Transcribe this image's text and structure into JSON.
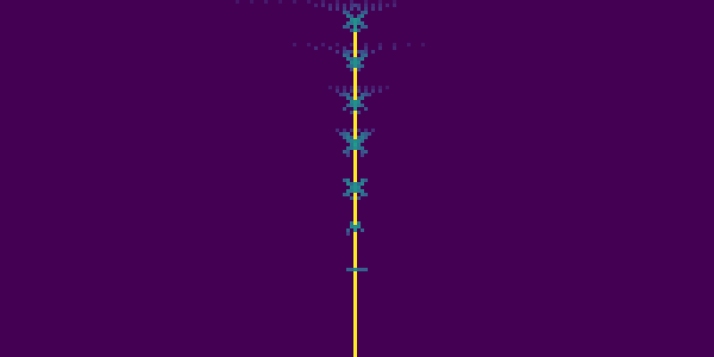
{
  "chart_data": {
    "type": "heatmap",
    "xlim": [
      0,
      200
    ],
    "ylim": [
      0,
      100
    ],
    "tick_labels": false,
    "color_range": [
      0,
      1
    ],
    "cells": [
      [
        66,
        0,
        0.06
      ],
      [
        70,
        0,
        0.06
      ],
      [
        74,
        0,
        0.07
      ],
      [
        78,
        0,
        0.06
      ],
      [
        82,
        0,
        0.07
      ],
      [
        86,
        0,
        0.07
      ],
      [
        90,
        0,
        0.08
      ],
      [
        94,
        0,
        0.08
      ],
      [
        98,
        0,
        0.09
      ],
      [
        102,
        0,
        0.08
      ],
      [
        106,
        0,
        0.07
      ],
      [
        110,
        0,
        0.06
      ],
      [
        88,
        1,
        0.1
      ],
      [
        90,
        1,
        0.12
      ],
      [
        92,
        1,
        0.12
      ],
      [
        94,
        1,
        0.12
      ],
      [
        96,
        1,
        0.14
      ],
      [
        98,
        1,
        0.15
      ],
      [
        99,
        1,
        0.2
      ],
      [
        100,
        1,
        0.15
      ],
      [
        102,
        1,
        0.13
      ],
      [
        104,
        1,
        0.12
      ],
      [
        106,
        1,
        0.12
      ],
      [
        108,
        1,
        0.1
      ],
      [
        110,
        1,
        0.1
      ],
      [
        92,
        2,
        0.15
      ],
      [
        94,
        2,
        0.15
      ],
      [
        96,
        2,
        0.18
      ],
      [
        98,
        2,
        0.2
      ],
      [
        100,
        2,
        0.2
      ],
      [
        102,
        2,
        0.18
      ],
      [
        104,
        2,
        0.15
      ],
      [
        106,
        2,
        0.15
      ],
      [
        96,
        3,
        0.3
      ],
      [
        97,
        3,
        0.25
      ],
      [
        101,
        3,
        0.25
      ],
      [
        102,
        3,
        0.3
      ],
      [
        97,
        4,
        0.4
      ],
      [
        98,
        4,
        0.3
      ],
      [
        100,
        4,
        0.3
      ],
      [
        101,
        4,
        0.4
      ],
      [
        98,
        5,
        0.45
      ],
      [
        99,
        5,
        0.5
      ],
      [
        100,
        5,
        0.45
      ],
      [
        97,
        6,
        0.35
      ],
      [
        98,
        6,
        0.4
      ],
      [
        99,
        6,
        0.5
      ],
      [
        100,
        6,
        0.4
      ],
      [
        101,
        6,
        0.35
      ],
      [
        96,
        7,
        0.3
      ],
      [
        97,
        7,
        0.3
      ],
      [
        99,
        7,
        0.5
      ],
      [
        101,
        7,
        0.3
      ],
      [
        102,
        7,
        0.3
      ],
      [
        98,
        8,
        0.25
      ],
      [
        99,
        8,
        0.55
      ],
      [
        100,
        8,
        0.25
      ],
      [
        99,
        9,
        1
      ],
      [
        99,
        10,
        1
      ],
      [
        99,
        11,
        1
      ],
      [
        99,
        12,
        1
      ],
      [
        99,
        13,
        1
      ],
      [
        99,
        14,
        1
      ],
      [
        99,
        15,
        1
      ],
      [
        82,
        12,
        0.07
      ],
      [
        86,
        12,
        0.07
      ],
      [
        90,
        12,
        0.08
      ],
      [
        94,
        12,
        0.08
      ],
      [
        98,
        12,
        0.09
      ],
      [
        102,
        12,
        0.09
      ],
      [
        106,
        12,
        0.08
      ],
      [
        110,
        12,
        0.07
      ],
      [
        114,
        12,
        0.07
      ],
      [
        118,
        12,
        0.06
      ],
      [
        88,
        13,
        0.12
      ],
      [
        92,
        13,
        0.12
      ],
      [
        96,
        13,
        0.14
      ],
      [
        102,
        13,
        0.14
      ],
      [
        106,
        13,
        0.12
      ],
      [
        110,
        13,
        0.1
      ],
      [
        94,
        14,
        0.15
      ],
      [
        96,
        14,
        0.2
      ],
      [
        97,
        14,
        0.25
      ],
      [
        98,
        14,
        0.2
      ],
      [
        100,
        14,
        0.2
      ],
      [
        101,
        14,
        0.25
      ],
      [
        102,
        14,
        0.2
      ],
      [
        104,
        14,
        0.15
      ],
      [
        96,
        15,
        0.35
      ],
      [
        97,
        15,
        0.3
      ],
      [
        101,
        15,
        0.3
      ],
      [
        102,
        15,
        0.35
      ],
      [
        97,
        16,
        0.4
      ],
      [
        98,
        16,
        0.35
      ],
      [
        99,
        16,
        0.5
      ],
      [
        100,
        16,
        0.35
      ],
      [
        101,
        16,
        0.4
      ],
      [
        98,
        17,
        0.45
      ],
      [
        99,
        17,
        0.5
      ],
      [
        100,
        17,
        0.45
      ],
      [
        97,
        18,
        0.3
      ],
      [
        98,
        18,
        0.35
      ],
      [
        99,
        18,
        0.5
      ],
      [
        100,
        18,
        0.35
      ],
      [
        101,
        18,
        0.3
      ],
      [
        98,
        19,
        0.2
      ],
      [
        100,
        19,
        0.2
      ],
      [
        99,
        19,
        1
      ],
      [
        99,
        20,
        1
      ],
      [
        99,
        21,
        1
      ],
      [
        99,
        22,
        1
      ],
      [
        99,
        23,
        1
      ],
      [
        99,
        24,
        1
      ],
      [
        99,
        25,
        1
      ],
      [
        99,
        26,
        1
      ],
      [
        99,
        27,
        1
      ],
      [
        92,
        24,
        0.08
      ],
      [
        94,
        24,
        0.08
      ],
      [
        96,
        24,
        0.1
      ],
      [
        98,
        24,
        0.1
      ],
      [
        100,
        24,
        0.1
      ],
      [
        102,
        24,
        0.1
      ],
      [
        104,
        24,
        0.08
      ],
      [
        106,
        24,
        0.08
      ],
      [
        108,
        24,
        0.07
      ],
      [
        94,
        25,
        0.14
      ],
      [
        96,
        25,
        0.14
      ],
      [
        98,
        25,
        0.16
      ],
      [
        100,
        25,
        0.16
      ],
      [
        102,
        25,
        0.14
      ],
      [
        104,
        25,
        0.14
      ],
      [
        106,
        25,
        0.12
      ],
      [
        95,
        26,
        0.2
      ],
      [
        96,
        26,
        0.25
      ],
      [
        97,
        26,
        0.3
      ],
      [
        101,
        26,
        0.3
      ],
      [
        102,
        26,
        0.25
      ],
      [
        103,
        26,
        0.2
      ],
      [
        97,
        27,
        0.35
      ],
      [
        98,
        27,
        0.3
      ],
      [
        100,
        27,
        0.3
      ],
      [
        101,
        27,
        0.35
      ],
      [
        98,
        28,
        0.45
      ],
      [
        99,
        28,
        0.5
      ],
      [
        100,
        28,
        0.45
      ],
      [
        97,
        29,
        0.3
      ],
      [
        98,
        29,
        0.4
      ],
      [
        99,
        29,
        0.5
      ],
      [
        100,
        29,
        0.4
      ],
      [
        101,
        29,
        0.3
      ],
      [
        96,
        30,
        0.25
      ],
      [
        99,
        30,
        0.5
      ],
      [
        102,
        30,
        0.25
      ],
      [
        98,
        31,
        0.2
      ],
      [
        100,
        31,
        0.2
      ],
      [
        99,
        31,
        1
      ],
      [
        99,
        32,
        1
      ],
      [
        99,
        33,
        1
      ],
      [
        99,
        34,
        1
      ],
      [
        99,
        35,
        1
      ],
      [
        99,
        36,
        1
      ],
      [
        99,
        37,
        1
      ],
      [
        99,
        38,
        1
      ],
      [
        94,
        36,
        0.12
      ],
      [
        96,
        36,
        0.12
      ],
      [
        98,
        36,
        0.14
      ],
      [
        100,
        36,
        0.14
      ],
      [
        102,
        36,
        0.12
      ],
      [
        104,
        36,
        0.12
      ],
      [
        95,
        37,
        0.25
      ],
      [
        96,
        37,
        0.3
      ],
      [
        97,
        37,
        0.35
      ],
      [
        101,
        37,
        0.35
      ],
      [
        102,
        37,
        0.3
      ],
      [
        103,
        37,
        0.25
      ],
      [
        96,
        38,
        0.3
      ],
      [
        97,
        38,
        0.4
      ],
      [
        98,
        38,
        0.3
      ],
      [
        100,
        38,
        0.3
      ],
      [
        101,
        38,
        0.4
      ],
      [
        102,
        38,
        0.3
      ],
      [
        97,
        39,
        0.35
      ],
      [
        98,
        39,
        0.45
      ],
      [
        99,
        39,
        0.5
      ],
      [
        100,
        39,
        0.45
      ],
      [
        101,
        39,
        0.35
      ],
      [
        98,
        40,
        0.4
      ],
      [
        99,
        40,
        0.55
      ],
      [
        100,
        40,
        0.4
      ],
      [
        97,
        41,
        0.35
      ],
      [
        98,
        41,
        0.4
      ],
      [
        99,
        41,
        0.5
      ],
      [
        100,
        41,
        0.4
      ],
      [
        101,
        41,
        0.35
      ],
      [
        96,
        42,
        0.3
      ],
      [
        97,
        42,
        0.25
      ],
      [
        101,
        42,
        0.25
      ],
      [
        102,
        42,
        0.3
      ],
      [
        97,
        43,
        0.2
      ],
      [
        101,
        43,
        0.2
      ],
      [
        99,
        42,
        1
      ],
      [
        99,
        43,
        1
      ],
      [
        99,
        44,
        1
      ],
      [
        99,
        45,
        1
      ],
      [
        99,
        46,
        1
      ],
      [
        99,
        47,
        1
      ],
      [
        99,
        48,
        1
      ],
      [
        99,
        49,
        1
      ],
      [
        99,
        50,
        1
      ],
      [
        96,
        50,
        0.3
      ],
      [
        97,
        50,
        0.4
      ],
      [
        101,
        50,
        0.4
      ],
      [
        102,
        50,
        0.3
      ],
      [
        97,
        51,
        0.45
      ],
      [
        98,
        51,
        0.35
      ],
      [
        99,
        51,
        0.5
      ],
      [
        100,
        51,
        0.35
      ],
      [
        101,
        51,
        0.45
      ],
      [
        98,
        52,
        0.45
      ],
      [
        99,
        52,
        0.5
      ],
      [
        100,
        52,
        0.45
      ],
      [
        97,
        53,
        0.4
      ],
      [
        98,
        53,
        0.4
      ],
      [
        99,
        53,
        0.5
      ],
      [
        100,
        53,
        0.4
      ],
      [
        101,
        53,
        0.4
      ],
      [
        96,
        54,
        0.3
      ],
      [
        97,
        54,
        0.35
      ],
      [
        101,
        54,
        0.35
      ],
      [
        102,
        54,
        0.3
      ],
      [
        98,
        55,
        0.25
      ],
      [
        100,
        55,
        0.25
      ],
      [
        99,
        54,
        1
      ],
      [
        99,
        55,
        1
      ],
      [
        99,
        56,
        1
      ],
      [
        99,
        57,
        1
      ],
      [
        99,
        58,
        1
      ],
      [
        99,
        59,
        1
      ],
      [
        99,
        60,
        1
      ],
      [
        99,
        61,
        1
      ],
      [
        99,
        62,
        1
      ],
      [
        98,
        62,
        0.4
      ],
      [
        100,
        62,
        0.4
      ],
      [
        98,
        63,
        0.45
      ],
      [
        99,
        63,
        0.5
      ],
      [
        100,
        63,
        0.45
      ],
      [
        97,
        64,
        0.3
      ],
      [
        99,
        64,
        0.5
      ],
      [
        101,
        64,
        0.3
      ],
      [
        97,
        65,
        0.2
      ],
      [
        99,
        65,
        1
      ],
      [
        99,
        66,
        1
      ],
      [
        99,
        67,
        1
      ],
      [
        99,
        68,
        1
      ],
      [
        99,
        69,
        1
      ],
      [
        99,
        70,
        1
      ],
      [
        99,
        71,
        1
      ],
      [
        99,
        72,
        1
      ],
      [
        99,
        73,
        1
      ],
      [
        99,
        74,
        1
      ],
      [
        97,
        75,
        0.3
      ],
      [
        98,
        75,
        0.3
      ],
      [
        99,
        75,
        0.5
      ],
      [
        100,
        75,
        0.3
      ],
      [
        101,
        75,
        0.3
      ],
      [
        102,
        75,
        0.3
      ],
      [
        99,
        76,
        1
      ],
      [
        99,
        77,
        1
      ],
      [
        99,
        78,
        1
      ],
      [
        99,
        79,
        1
      ],
      [
        99,
        80,
        1
      ],
      [
        99,
        81,
        1
      ],
      [
        99,
        82,
        1
      ],
      [
        99,
        83,
        1
      ],
      [
        99,
        84,
        1
      ],
      [
        99,
        85,
        1
      ],
      [
        99,
        86,
        1
      ],
      [
        99,
        87,
        1
      ],
      [
        99,
        88,
        1
      ],
      [
        99,
        89,
        1
      ],
      [
        99,
        90,
        1
      ],
      [
        99,
        91,
        1
      ],
      [
        99,
        92,
        1
      ],
      [
        99,
        93,
        1
      ],
      [
        99,
        94,
        1
      ],
      [
        99,
        95,
        1
      ],
      [
        99,
        96,
        1
      ],
      [
        99,
        97,
        1
      ],
      [
        99,
        98,
        1
      ],
      [
        99,
        99,
        1
      ]
    ]
  }
}
